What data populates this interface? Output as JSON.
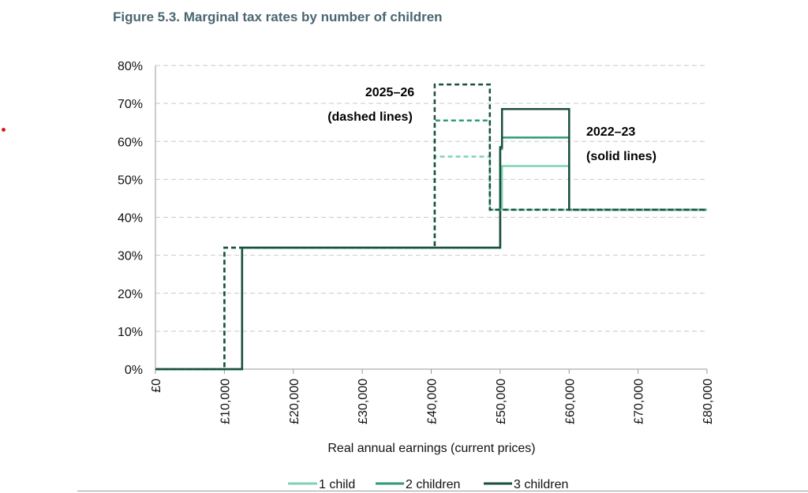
{
  "figure_title": "Figure 5.3. Marginal tax rates by number of children",
  "colors": {
    "one_child": "#7fd3b2",
    "two_children": "#2e9a77",
    "three_children": "#1c4f3c",
    "grid": "#c9c9c9",
    "axis": "#9a9a9a",
    "title": "#4a6670"
  },
  "chart_data": {
    "type": "line",
    "title": "Marginal tax rates by number of children",
    "xlabel": "Real annual earnings (current prices)",
    "ylabel": "",
    "xlim": [
      0,
      80000
    ],
    "ylim": [
      0,
      80
    ],
    "xticks": [
      0,
      10000,
      20000,
      30000,
      40000,
      50000,
      60000,
      70000,
      80000
    ],
    "xtick_labels": [
      "£0",
      "£10,000",
      "£20,000",
      "£30,000",
      "£40,000",
      "£50,000",
      "£60,000",
      "£70,000",
      "£80,000"
    ],
    "yticks": [
      0,
      10,
      20,
      30,
      40,
      50,
      60,
      70,
      80
    ],
    "ytick_labels": [
      "0%",
      "10%",
      "20%",
      "30%",
      "40%",
      "50%",
      "60%",
      "70%",
      "80%"
    ],
    "grid": "horizontal dashed",
    "legend": [
      "1 child",
      "2 children",
      "3 children"
    ],
    "legend_position": "bottom",
    "series": [
      {
        "name": "1 child",
        "year": "2022–23",
        "style": "solid",
        "points": [
          [
            0,
            0
          ],
          [
            12570,
            0
          ],
          [
            12570,
            32
          ],
          [
            50000,
            32
          ],
          [
            50000,
            42
          ],
          [
            50270,
            42
          ],
          [
            50270,
            53.5
          ],
          [
            60000,
            53.5
          ],
          [
            60000,
            42
          ],
          [
            80000,
            42
          ]
        ]
      },
      {
        "name": "2 children",
        "year": "2022–23",
        "style": "solid",
        "points": [
          [
            0,
            0
          ],
          [
            12570,
            0
          ],
          [
            12570,
            32
          ],
          [
            50000,
            32
          ],
          [
            50000,
            58
          ],
          [
            50270,
            58
          ],
          [
            50270,
            61
          ],
          [
            60000,
            61
          ],
          [
            60000,
            42
          ],
          [
            80000,
            42
          ]
        ]
      },
      {
        "name": "3 children",
        "year": "2022–23",
        "style": "solid",
        "points": [
          [
            0,
            0
          ],
          [
            12570,
            0
          ],
          [
            12570,
            32
          ],
          [
            50000,
            32
          ],
          [
            50000,
            58.5
          ],
          [
            50270,
            58.5
          ],
          [
            50270,
            68.5
          ],
          [
            60000,
            68.5
          ],
          [
            60000,
            42
          ],
          [
            80000,
            42
          ]
        ]
      },
      {
        "name": "1 child",
        "year": "2025–26",
        "style": "dashed",
        "points": [
          [
            0,
            0
          ],
          [
            10000,
            0
          ],
          [
            10000,
            32
          ],
          [
            40500,
            32
          ],
          [
            40500,
            56
          ],
          [
            48500,
            56
          ],
          [
            48500,
            42
          ],
          [
            80000,
            42
          ]
        ]
      },
      {
        "name": "2 children",
        "year": "2025–26",
        "style": "dashed",
        "points": [
          [
            0,
            0
          ],
          [
            10000,
            0
          ],
          [
            10000,
            32
          ],
          [
            40500,
            32
          ],
          [
            40500,
            65.5
          ],
          [
            48500,
            65.5
          ],
          [
            48500,
            42
          ],
          [
            80000,
            42
          ]
        ]
      },
      {
        "name": "3 children",
        "year": "2025–26",
        "style": "dashed",
        "points": [
          [
            0,
            0
          ],
          [
            10000,
            0
          ],
          [
            10000,
            32
          ],
          [
            40500,
            32
          ],
          [
            40500,
            75
          ],
          [
            48500,
            75
          ],
          [
            48500,
            42
          ],
          [
            80000,
            42
          ]
        ]
      }
    ],
    "annotations": [
      {
        "text": "2025–26",
        "anchor": "dashed-lines-label-year"
      },
      {
        "text": "(dashed lines)",
        "anchor": "dashed-lines-label-desc"
      },
      {
        "text": "2022–23",
        "anchor": "solid-lines-label-year"
      },
      {
        "text": "(solid lines)",
        "anchor": "solid-lines-label-desc"
      }
    ]
  }
}
